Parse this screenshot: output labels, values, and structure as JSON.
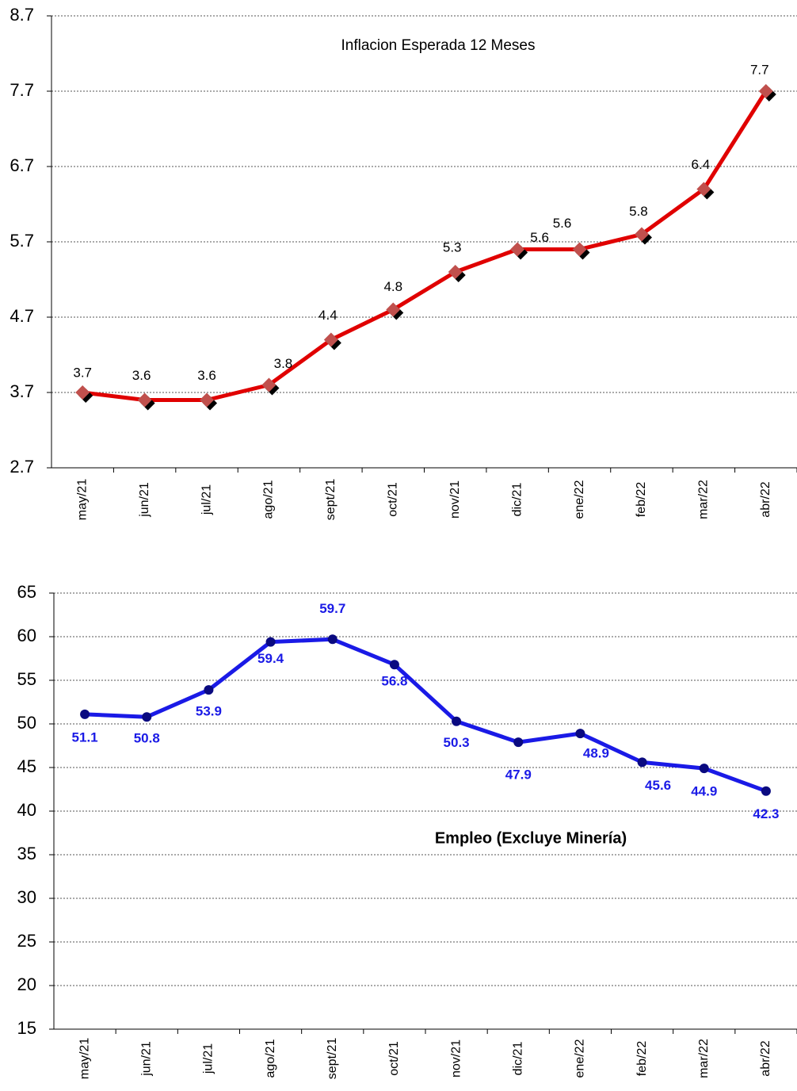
{
  "chart_data": [
    {
      "type": "line",
      "title": "Inflacion Esperada 12 Meses",
      "categories": [
        "may/21",
        "jun/21",
        "jul/21",
        "ago/21",
        "sept/21",
        "oct/21",
        "nov/21",
        "dic/21",
        "ene/22",
        "feb/22",
        "mar/22",
        "abr/22"
      ],
      "series": [
        {
          "color": "#e00000",
          "marker_color": "#c0504d",
          "values": [
            3.7,
            3.6,
            3.6,
            3.8,
            4.4,
            4.8,
            5.3,
            5.6,
            5.6,
            5.8,
            6.4,
            7.7
          ]
        }
      ],
      "ylim": [
        2.7,
        8.7
      ],
      "yticks": [
        2.7,
        3.7,
        4.7,
        5.7,
        6.7,
        7.7,
        8.7
      ],
      "grid": true
    },
    {
      "type": "line",
      "title": "Empleo (Excluye Minería)",
      "categories": [
        "may/21",
        "jun/21",
        "jul/21",
        "ago/21",
        "sept/21",
        "oct/21",
        "nov/21",
        "dic/21",
        "ene/22",
        "feb/22",
        "mar/22",
        "abr/22"
      ],
      "series": [
        {
          "color": "#1a1ae6",
          "marker_color": "#0a0a80",
          "values": [
            51.1,
            50.8,
            53.9,
            59.4,
            59.7,
            56.8,
            50.3,
            47.9,
            48.9,
            45.6,
            44.9,
            42.3
          ]
        }
      ],
      "ylim": [
        15,
        65
      ],
      "yticks": [
        15,
        20,
        25,
        30,
        35,
        40,
        45,
        50,
        55,
        60,
        65
      ],
      "grid": true
    }
  ]
}
